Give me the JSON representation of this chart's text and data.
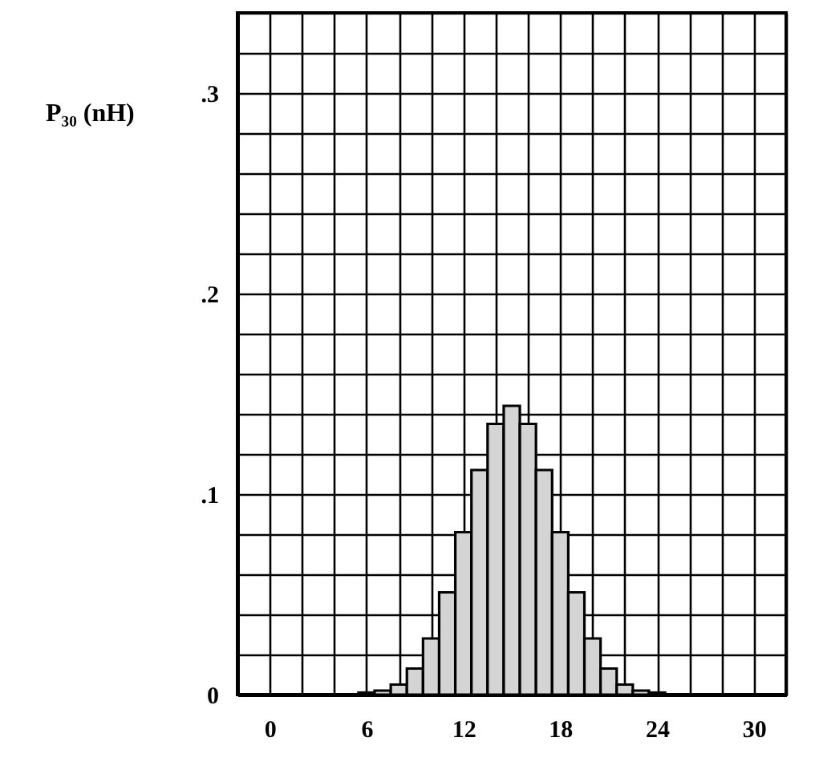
{
  "chart_data": {
    "type": "histogram",
    "ylabel": "P₃₀ (nH)",
    "bins": [
      -0.5,
      0.5,
      1.5,
      2.5,
      3.5,
      4.5,
      5.5,
      6.5,
      7.5,
      8.5,
      9.5,
      10.5,
      11.5,
      12.5,
      13.5,
      14.5,
      15.5,
      16.5,
      17.5,
      18.5,
      19.5,
      20.5,
      21.5,
      22.5,
      23.5,
      24.5,
      25.5,
      26.5,
      27.5,
      28.5,
      29.5,
      30.5
    ],
    "values": [
      0,
      0,
      0,
      0,
      0,
      0,
      0.001,
      0.002,
      0.005,
      0.013,
      0.028,
      0.051,
      0.081,
      0.112,
      0.135,
      0.144,
      0.135,
      0.112,
      0.081,
      0.051,
      0.028,
      0.013,
      0.005,
      0.002,
      0.001,
      0,
      0,
      0,
      0,
      0,
      0
    ],
    "color": "#d4d4d4",
    "xlim": [
      -2,
      32
    ],
    "ylim": [
      0,
      0.34
    ],
    "xticks": [
      {
        "value": -2,
        "label": null
      },
      0,
      {
        "value": 2,
        "label": null
      },
      {
        "value": 4,
        "label": null
      },
      6,
      {
        "value": 8,
        "label": null
      },
      {
        "value": 10,
        "label": null
      },
      12,
      {
        "value": 14,
        "label": null
      },
      {
        "value": 16,
        "label": null
      },
      18,
      {
        "value": 20,
        "label": null
      },
      {
        "value": 22,
        "label": null
      },
      24,
      {
        "value": 26,
        "label": null
      },
      {
        "value": 28,
        "label": null
      },
      30,
      {
        "value": 32,
        "label": null
      }
    ],
    "yticks": [
      0,
      {
        "value": 0.02,
        "label": null
      },
      {
        "value": 0.04,
        "label": null
      },
      {
        "value": 0.06,
        "label": null
      },
      {
        "value": 0.08,
        "label": null
      },
      {
        "value": 0.1,
        "label": ".1"
      },
      {
        "value": 0.12,
        "label": null
      },
      {
        "value": 0.14,
        "label": null
      },
      {
        "value": 0.16,
        "label": null
      },
      {
        "value": 0.18,
        "label": null
      },
      {
        "value": 0.2,
        "label": ".2"
      },
      {
        "value": 0.22,
        "label": null
      },
      {
        "value": 0.24,
        "label": null
      },
      {
        "value": 0.26,
        "label": null
      },
      {
        "value": 0.28,
        "label": null
      },
      {
        "value": 0.3,
        "label": ".3"
      },
      {
        "value": 0.32,
        "label": null
      },
      {
        "value": 0.34,
        "label": null
      }
    ],
    "grid": true
  }
}
